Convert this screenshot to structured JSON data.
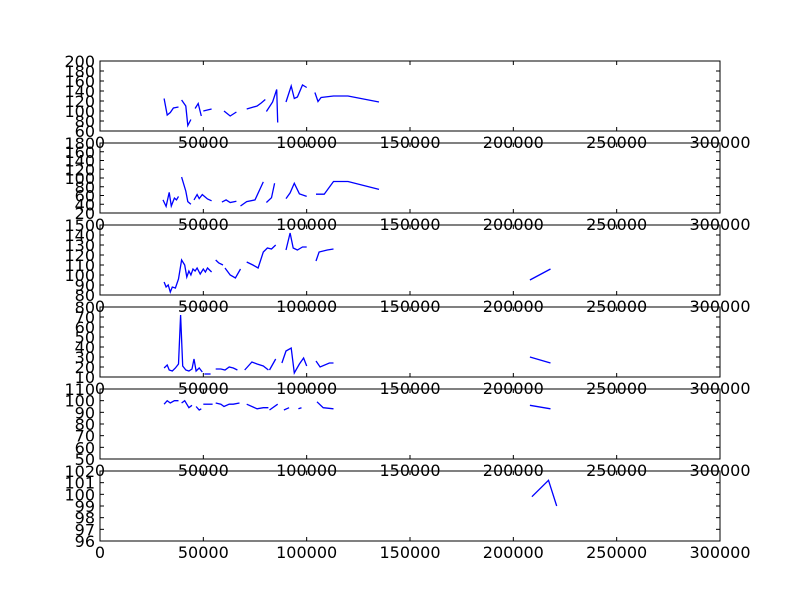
{
  "chart_data": {
    "type": "line",
    "x_ticks": [
      0,
      50000,
      100000,
      150000,
      200000,
      250000,
      300000
    ],
    "x_tick_labels": [
      "0",
      "50000",
      "100000",
      "150000",
      "200000",
      "250000",
      "300000"
    ],
    "series_color": "#0000ff",
    "grid": false,
    "panels": [
      {
        "ylim": [
          60,
          200
        ],
        "y_tick_labels": [
          "60",
          "80",
          "100",
          "120",
          "140",
          "160",
          "180",
          "200"
        ],
        "segments": [
          [
            [
              31000,
              125
            ],
            [
              32500,
              92
            ],
            [
              34000,
              97
            ],
            [
              35500,
              106
            ],
            [
              38000,
              108
            ]
          ],
          [
            [
              39500,
              122
            ],
            [
              41500,
              110
            ],
            [
              42500,
              71
            ],
            [
              44000,
              83
            ]
          ],
          [
            [
              46000,
              105
            ],
            [
              47500,
              115
            ],
            [
              49000,
              90
            ]
          ],
          [
            [
              50000,
              100
            ],
            [
              54000,
              104
            ]
          ],
          [
            [
              60000,
              100
            ],
            [
              63000,
              90
            ],
            [
              66000,
              98
            ]
          ],
          [
            [
              71000,
              104
            ],
            [
              76000,
              110
            ],
            [
              78000,
              116
            ],
            [
              80000,
              123
            ]
          ],
          [
            [
              80500,
              99
            ],
            [
              83500,
              118
            ],
            [
              85500,
              143
            ],
            [
              86000,
              77
            ]
          ],
          [
            [
              90000,
              118
            ],
            [
              92500,
              150
            ],
            [
              94000,
              125
            ],
            [
              95500,
              128
            ],
            [
              98000,
              152
            ],
            [
              100000,
              147
            ]
          ],
          [
            [
              104000,
              137
            ],
            [
              105500,
              119
            ],
            [
              107000,
              127
            ],
            [
              113000,
              130
            ],
            [
              120000,
              130
            ],
            [
              135000,
              118
            ]
          ]
        ]
      },
      {
        "ylim": [
          20,
          180
        ],
        "y_tick_labels": [
          "20",
          "40",
          "60",
          "80",
          "100",
          "120",
          "140",
          "160",
          "180"
        ],
        "segments": [
          [
            [
              30500,
              50
            ],
            [
              32000,
              35
            ],
            [
              33500,
              67
            ],
            [
              34500,
              36
            ],
            [
              36000,
              54
            ],
            [
              37000,
              50
            ],
            [
              38000,
              58
            ]
          ],
          [
            [
              39500,
              102
            ],
            [
              41500,
              70
            ],
            [
              42500,
              46
            ],
            [
              44000,
              40
            ]
          ],
          [
            [
              45500,
              50
            ],
            [
              47000,
              62
            ],
            [
              48000,
              53
            ],
            [
              49500,
              62
            ],
            [
              52000,
              52
            ],
            [
              54000,
              48
            ]
          ],
          [
            [
              59000,
              45
            ],
            [
              61000,
              50
            ],
            [
              63000,
              44
            ],
            [
              66000,
              47
            ]
          ],
          [
            [
              68000,
              36
            ],
            [
              71000,
              46
            ],
            [
              75000,
              50
            ],
            [
              79000,
              91
            ]
          ],
          [
            [
              80500,
              44
            ],
            [
              83000,
              55
            ],
            [
              84500,
              88
            ]
          ],
          [
            [
              90000,
              53
            ],
            [
              92000,
              66
            ],
            [
              94000,
              88
            ],
            [
              96500,
              64
            ],
            [
              100000,
              58
            ]
          ],
          [
            [
              104500,
              63
            ],
            [
              108500,
              63
            ],
            [
              113000,
              92
            ],
            [
              120000,
              92
            ],
            [
              135000,
              74
            ]
          ]
        ]
      },
      {
        "ylim": [
          80,
          150
        ],
        "y_tick_labels": [
          "80",
          "90",
          "100",
          "110",
          "120",
          "130",
          "140",
          "150"
        ],
        "segments": [
          [
            [
              31000,
              93
            ],
            [
              32000,
              88
            ],
            [
              33000,
              90
            ],
            [
              34000,
              83
            ],
            [
              35000,
              88
            ],
            [
              36500,
              87
            ],
            [
              38000,
              96
            ],
            [
              39500,
              115
            ],
            [
              41000,
              110
            ],
            [
              42000,
              98
            ],
            [
              43000,
              104
            ],
            [
              44000,
              100
            ],
            [
              45000,
              106
            ],
            [
              46000,
              104
            ],
            [
              47000,
              107
            ],
            [
              48500,
              101
            ],
            [
              50000,
              106
            ],
            [
              51000,
              103
            ],
            [
              52000,
              107
            ],
            [
              54000,
              103
            ]
          ],
          [
            [
              56000,
              115
            ],
            [
              57500,
              112
            ],
            [
              59500,
              110
            ]
          ],
          [
            [
              60500,
              107
            ],
            [
              63000,
              100
            ],
            [
              65500,
              97
            ],
            [
              68000,
              106
            ]
          ],
          [
            [
              71000,
              113
            ],
            [
              74000,
              110
            ],
            [
              76500,
              107
            ],
            [
              79000,
              123
            ],
            [
              81000,
              127
            ],
            [
              83000,
              126
            ],
            [
              85000,
              130
            ]
          ],
          [
            [
              90000,
              125
            ],
            [
              92000,
              142
            ],
            [
              93500,
              127
            ],
            [
              95500,
              125
            ],
            [
              98000,
              128
            ],
            [
              100000,
              128
            ]
          ],
          [
            [
              104500,
              114
            ],
            [
              106000,
              123
            ],
            [
              110000,
              125
            ],
            [
              113000,
              126
            ]
          ],
          [
            [
              208000,
              95
            ],
            [
              218000,
              106
            ]
          ]
        ]
      },
      {
        "ylim": [
          10,
          80
        ],
        "y_tick_labels": [
          "10",
          "20",
          "30",
          "40",
          "50",
          "60",
          "70",
          "80"
        ],
        "segments": [
          [
            [
              31000,
              19
            ],
            [
              32500,
              22
            ],
            [
              33500,
              17
            ],
            [
              35000,
              16
            ],
            [
              36500,
              19
            ],
            [
              38000,
              23
            ],
            [
              39000,
              72
            ],
            [
              40000,
              21
            ],
            [
              41500,
              17
            ],
            [
              43000,
              16
            ],
            [
              44500,
              18
            ],
            [
              45500,
              28
            ],
            [
              46500,
              16
            ],
            [
              48000,
              19
            ],
            [
              49500,
              15
            ]
          ],
          [
            [
              50500,
              13
            ],
            [
              53500,
              13
            ]
          ],
          [
            [
              56000,
              18
            ],
            [
              58500,
              18
            ],
            [
              60500,
              17
            ],
            [
              62500,
              20
            ],
            [
              64500,
              19
            ],
            [
              66500,
              17
            ]
          ],
          [
            [
              70000,
              17
            ],
            [
              73500,
              25
            ],
            [
              76000,
              23
            ],
            [
              79000,
              21
            ],
            [
              81500,
              17
            ]
          ],
          [
            [
              82000,
              17
            ],
            [
              85000,
              28
            ]
          ],
          [
            [
              88000,
              24
            ],
            [
              90000,
              36
            ],
            [
              92500,
              39
            ],
            [
              94000,
              14
            ],
            [
              96500,
              23
            ],
            [
              98500,
              29
            ],
            [
              100000,
              21
            ]
          ],
          [
            [
              104500,
              26
            ],
            [
              106500,
              20
            ],
            [
              111000,
              24
            ],
            [
              113000,
              24
            ]
          ],
          [
            [
              208000,
              30
            ],
            [
              218000,
              24
            ]
          ]
        ]
      },
      {
        "ylim": [
          50,
          110
        ],
        "y_tick_labels": [
          "50",
          "60",
          "70",
          "80",
          "90",
          "100",
          "110"
        ],
        "segments": [
          [
            [
              31000,
              97
            ],
            [
              32500,
              100
            ],
            [
              34000,
              98
            ],
            [
              36000,
              100
            ],
            [
              38000,
              100
            ]
          ],
          [
            [
              39500,
              98
            ],
            [
              41000,
              100
            ],
            [
              43000,
              94
            ],
            [
              44500,
              96
            ]
          ],
          [
            [
              46500,
              95
            ],
            [
              48000,
              92
            ],
            [
              49000,
              93
            ]
          ],
          [
            [
              50000,
              97
            ],
            [
              54500,
              97
            ]
          ],
          [
            [
              56000,
              98
            ],
            [
              58500,
              97
            ],
            [
              60000,
              95
            ],
            [
              62500,
              97
            ],
            [
              64500,
              97
            ],
            [
              67500,
              98
            ]
          ],
          [
            [
              71000,
              97
            ],
            [
              76000,
              93
            ],
            [
              79000,
              94
            ],
            [
              81500,
              94
            ]
          ],
          [
            [
              82000,
              92
            ],
            [
              86000,
              97
            ]
          ],
          [
            [
              89000,
              92
            ],
            [
              91500,
              94
            ]
          ],
          [
            [
              96000,
              93
            ],
            [
              97500,
              94
            ]
          ],
          [
            [
              105000,
              99
            ],
            [
              108000,
              94
            ],
            [
              113000,
              93
            ]
          ],
          [
            [
              208000,
              96
            ],
            [
              218000,
              93
            ]
          ]
        ]
      },
      {
        "ylim": [
          96,
          102
        ],
        "y_tick_labels": [
          "96",
          "97",
          "98",
          "99",
          "100",
          "101",
          "102"
        ],
        "segments": [
          [
            [
              209000,
              99.8
            ],
            [
              217000,
              101.2
            ],
            [
              221000,
              99
            ]
          ]
        ]
      }
    ]
  }
}
